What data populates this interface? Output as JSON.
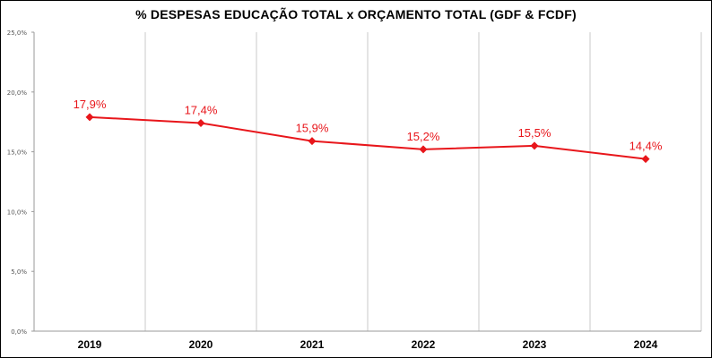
{
  "chart_data": {
    "type": "line",
    "title": "% DESPESAS EDUCAÇÃO TOTAL x ORÇAMENTO TOTAL (GDF & FCDF)",
    "categories": [
      "2019",
      "2020",
      "2021",
      "2022",
      "2023",
      "2024"
    ],
    "values": [
      17.9,
      17.4,
      15.9,
      15.2,
      15.5,
      14.4
    ],
    "data_labels": [
      "17,9%",
      "17,4%",
      "15,9%",
      "15,2%",
      "15,5%",
      "14,4%"
    ],
    "yticks": [
      0,
      5,
      10,
      15,
      20,
      25
    ],
    "ytick_labels": [
      "0,0%",
      "5,0%",
      "10,0%",
      "15,0%",
      "20,0%",
      "25,0%"
    ],
    "ylim": [
      0,
      25
    ],
    "xlabel": "",
    "ylabel": "",
    "grid": "vertical",
    "legend": "none",
    "color": "#e8161b"
  }
}
